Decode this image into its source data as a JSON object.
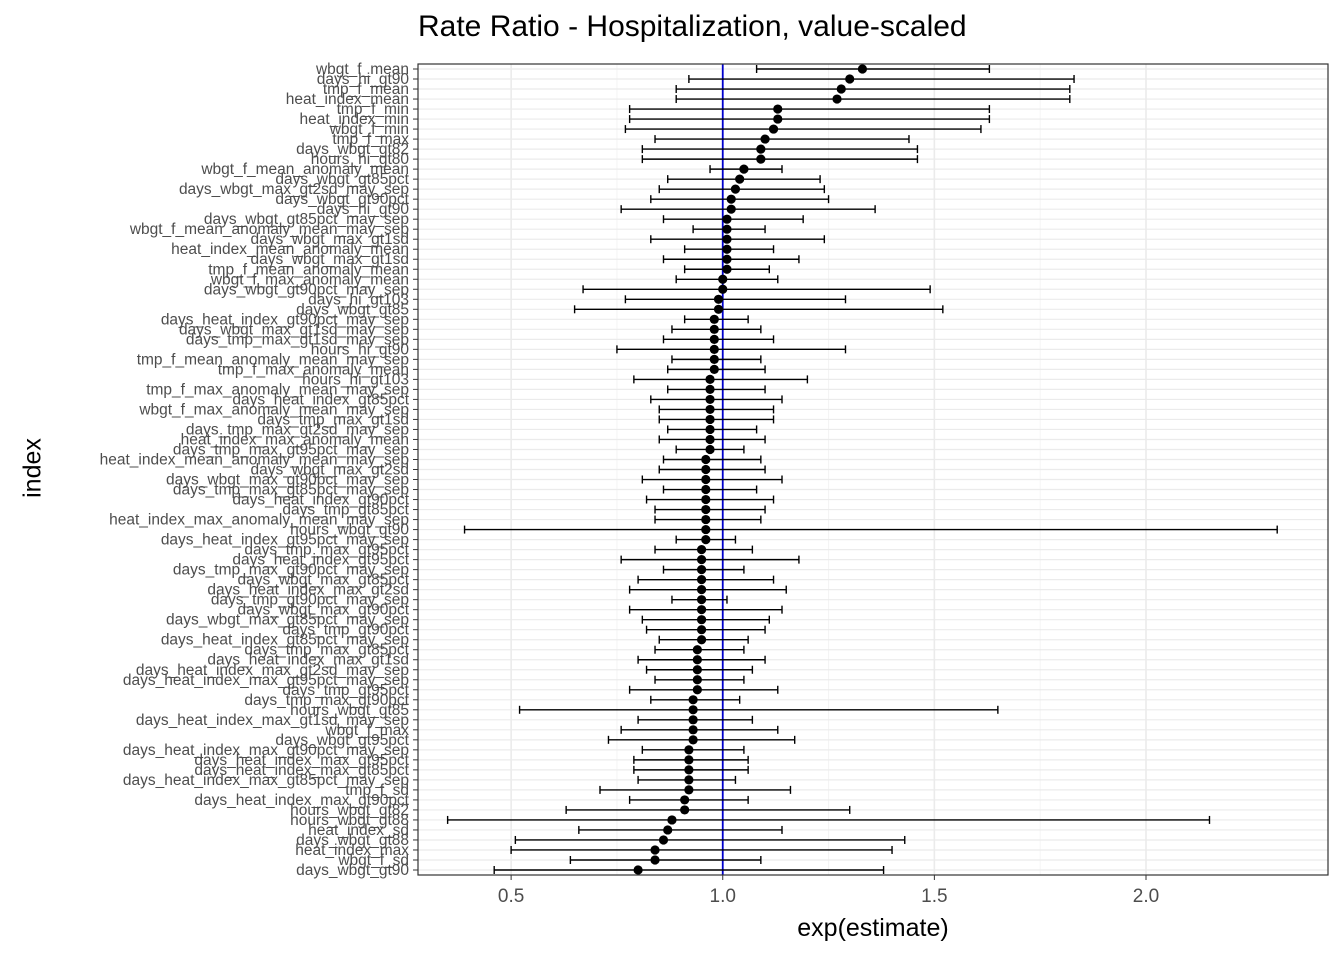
{
  "chart_data": {
    "type": "forest",
    "title": "Rate Ratio - Hospitalization, value-scaled",
    "xlabel": "exp(estimate)",
    "ylabel": "index",
    "xlim": [
      0.28,
      2.43
    ],
    "x_ticks": [
      0.5,
      1.0,
      1.5,
      2.0
    ],
    "x_tick_labels": [
      "0.5",
      "1.0",
      "1.5",
      "2.0"
    ],
    "reference_line": 1.0,
    "theme": "bw",
    "grid": true,
    "colors": {
      "point": "#000000",
      "errorbar": "#000000",
      "reference": "#0000cc",
      "grid_major": "#ebebeb",
      "grid_minor": "#f4f4f4",
      "panel_border": "#333333",
      "tick_text": "#4d4d4d"
    },
    "points": [
      {
        "label": "wbgt_f_mean",
        "estimate": 1.33,
        "low": 1.08,
        "high": 1.63
      },
      {
        "label": "days_hi_gt90",
        "estimate": 1.3,
        "low": 0.92,
        "high": 1.83
      },
      {
        "label": "tmp_f_mean",
        "estimate": 1.28,
        "low": 0.89,
        "high": 1.82
      },
      {
        "label": "heat_index_mean",
        "estimate": 1.27,
        "low": 0.89,
        "high": 1.82
      },
      {
        "label": "tmp_f_min",
        "estimate": 1.13,
        "low": 0.78,
        "high": 1.63
      },
      {
        "label": "heat_index_min",
        "estimate": 1.13,
        "low": 0.78,
        "high": 1.63
      },
      {
        "label": "wbgt_f_min",
        "estimate": 1.12,
        "low": 0.77,
        "high": 1.61
      },
      {
        "label": "tmp_f_max",
        "estimate": 1.1,
        "low": 0.84,
        "high": 1.44
      },
      {
        "label": "days_wbgt_gt82",
        "estimate": 1.09,
        "low": 0.81,
        "high": 1.46
      },
      {
        "label": "hours_hi_gt80",
        "estimate": 1.09,
        "low": 0.81,
        "high": 1.46
      },
      {
        "label": "wbgt_f_mean_anomaly_mean",
        "estimate": 1.05,
        "low": 0.97,
        "high": 1.14
      },
      {
        "label": "days_wbgt_gt85pct",
        "estimate": 1.04,
        "low": 0.87,
        "high": 1.23
      },
      {
        "label": "days_wbgt_max_gt2sd_may_sep",
        "estimate": 1.03,
        "low": 0.85,
        "high": 1.24
      },
      {
        "label": "days_wbgt_gt90pct",
        "estimate": 1.02,
        "low": 0.83,
        "high": 1.25
      },
      {
        "label": "days_hi_gt90",
        "estimate": 1.02,
        "low": 0.76,
        "high": 1.36
      },
      {
        "label": "days_wbgt_gt85pct_may_sep",
        "estimate": 1.01,
        "low": 0.86,
        "high": 1.19
      },
      {
        "label": "wbgt_f_mean_anomaly_mean_may_sep",
        "estimate": 1.01,
        "low": 0.93,
        "high": 1.1
      },
      {
        "label": "days_wbgt_max_gt1sd",
        "estimate": 1.01,
        "low": 0.83,
        "high": 1.24
      },
      {
        "label": "heat_index_mean_anomaly_mean",
        "estimate": 1.01,
        "low": 0.91,
        "high": 1.12
      },
      {
        "label": "days_wbgt_max_gt1sd",
        "estimate": 1.01,
        "low": 0.86,
        "high": 1.18
      },
      {
        "label": "tmp_f_mean_anomaly_mean",
        "estimate": 1.01,
        "low": 0.91,
        "high": 1.11
      },
      {
        "label": "wbgt_f_max_anomaly_mean",
        "estimate": 1.0,
        "low": 0.89,
        "high": 1.13
      },
      {
        "label": "days_wbgt_gt90pct_may_sep",
        "estimate": 1.0,
        "low": 0.67,
        "high": 1.49
      },
      {
        "label": "days_hi_gt103",
        "estimate": 0.99,
        "low": 0.77,
        "high": 1.29
      },
      {
        "label": "days_wbgt_gt85",
        "estimate": 0.99,
        "low": 0.65,
        "high": 1.52
      },
      {
        "label": "days_heat_index_gt90pct_may_sep",
        "estimate": 0.98,
        "low": 0.91,
        "high": 1.06
      },
      {
        "label": "days_wbgt_max_gt1sd_may_sep",
        "estimate": 0.98,
        "low": 0.88,
        "high": 1.09
      },
      {
        "label": "days_tmp_max_gt1sd_may_sep",
        "estimate": 0.98,
        "low": 0.86,
        "high": 1.12
      },
      {
        "label": "hours_hi_gt90",
        "estimate": 0.98,
        "low": 0.75,
        "high": 1.29
      },
      {
        "label": "tmp_f_mean_anomaly_mean_may_sep",
        "estimate": 0.98,
        "low": 0.88,
        "high": 1.09
      },
      {
        "label": "tmp_f_max_anomaly_mean",
        "estimate": 0.98,
        "low": 0.87,
        "high": 1.1
      },
      {
        "label": "hours_hi_gt103",
        "estimate": 0.97,
        "low": 0.79,
        "high": 1.2
      },
      {
        "label": "tmp_f_max_anomaly_mean_may_sep",
        "estimate": 0.97,
        "low": 0.87,
        "high": 1.1
      },
      {
        "label": "days_heat_index_gt85pct",
        "estimate": 0.97,
        "low": 0.83,
        "high": 1.14
      },
      {
        "label": "wbgt_f_max_anomaly_mean_may_sep",
        "estimate": 0.97,
        "low": 0.85,
        "high": 1.12
      },
      {
        "label": "days_tmp_max_gt1sd",
        "estimate": 0.97,
        "low": 0.85,
        "high": 1.12
      },
      {
        "label": "days_tmp_max_gt2sd_may_sep",
        "estimate": 0.97,
        "low": 0.87,
        "high": 1.08
      },
      {
        "label": "heat_index_max_anomaly_mean",
        "estimate": 0.97,
        "low": 0.85,
        "high": 1.1
      },
      {
        "label": "days_tmp_max_gt95pct_may_sep",
        "estimate": 0.97,
        "low": 0.89,
        "high": 1.05
      },
      {
        "label": "heat_index_mean_anomaly_mean_may_sep",
        "estimate": 0.96,
        "low": 0.86,
        "high": 1.09
      },
      {
        "label": "days_wbgt_max_gt2sd",
        "estimate": 0.96,
        "low": 0.85,
        "high": 1.1
      },
      {
        "label": "days_wbgt_max_gt90pct_may_sep",
        "estimate": 0.96,
        "low": 0.81,
        "high": 1.14
      },
      {
        "label": "days_tmp_max_gt85pct_may_sep",
        "estimate": 0.96,
        "low": 0.86,
        "high": 1.08
      },
      {
        "label": "days_heat_index_gt90pct",
        "estimate": 0.96,
        "low": 0.82,
        "high": 1.12
      },
      {
        "label": "days_tmp_gt85pct",
        "estimate": 0.96,
        "low": 0.84,
        "high": 1.1
      },
      {
        "label": "heat_index_max_anomaly_mean_may_sep",
        "estimate": 0.96,
        "low": 0.84,
        "high": 1.09
      },
      {
        "label": "hours_wbgt_gt90",
        "estimate": 0.96,
        "low": 0.39,
        "high": 2.31
      },
      {
        "label": "days_heat_index_gt95pct_may_sep",
        "estimate": 0.96,
        "low": 0.89,
        "high": 1.03
      },
      {
        "label": "days_tmp_max_gt95pct",
        "estimate": 0.95,
        "low": 0.84,
        "high": 1.07
      },
      {
        "label": "days_heat_index_gt95pct",
        "estimate": 0.95,
        "low": 0.76,
        "high": 1.18
      },
      {
        "label": "days_tmp_max_gt90pct_may_sep",
        "estimate": 0.95,
        "low": 0.86,
        "high": 1.05
      },
      {
        "label": "days_wbgt_max_gt85pct",
        "estimate": 0.95,
        "low": 0.8,
        "high": 1.12
      },
      {
        "label": "days_heat_index_max_gt2sd",
        "estimate": 0.95,
        "low": 0.78,
        "high": 1.15
      },
      {
        "label": "days_tmp_gt90pct_may_sep",
        "estimate": 0.95,
        "low": 0.88,
        "high": 1.01
      },
      {
        "label": "days_wbgt_max_gt90pct",
        "estimate": 0.95,
        "low": 0.78,
        "high": 1.14
      },
      {
        "label": "days_wbgt_max_gt85pct_may_sep",
        "estimate": 0.95,
        "low": 0.81,
        "high": 1.11
      },
      {
        "label": "days_tmp_gt90pct",
        "estimate": 0.95,
        "low": 0.82,
        "high": 1.1
      },
      {
        "label": "days_heat_index_gt85pct_may_sep",
        "estimate": 0.95,
        "low": 0.85,
        "high": 1.06
      },
      {
        "label": "days_tmp_max_gt85pct",
        "estimate": 0.94,
        "low": 0.84,
        "high": 1.05
      },
      {
        "label": "days_heat_index_max_gt1sd",
        "estimate": 0.94,
        "low": 0.8,
        "high": 1.1
      },
      {
        "label": "days_heat_index_max_gt2sd_may_sep",
        "estimate": 0.94,
        "low": 0.82,
        "high": 1.07
      },
      {
        "label": "days_heat_index_max_gt95pct_may_sep",
        "estimate": 0.94,
        "low": 0.84,
        "high": 1.05
      },
      {
        "label": "days_tmp_gt95pct",
        "estimate": 0.94,
        "low": 0.78,
        "high": 1.13
      },
      {
        "label": "days_tmp_max_gt90pct",
        "estimate": 0.93,
        "low": 0.83,
        "high": 1.04
      },
      {
        "label": "hours_wbgt_gt85",
        "estimate": 0.93,
        "low": 0.52,
        "high": 1.65
      },
      {
        "label": "days_heat_index_max_gt1sd_may_sep",
        "estimate": 0.93,
        "low": 0.8,
        "high": 1.07
      },
      {
        "label": "wbgt_f_max",
        "estimate": 0.93,
        "low": 0.76,
        "high": 1.13
      },
      {
        "label": "days_wbgt_gt95pct",
        "estimate": 0.93,
        "low": 0.73,
        "high": 1.17
      },
      {
        "label": "days_heat_index_max_gt90pct_may_sep",
        "estimate": 0.92,
        "low": 0.81,
        "high": 1.05
      },
      {
        "label": "days_heat_index_max_gt95pct",
        "estimate": 0.92,
        "low": 0.79,
        "high": 1.06
      },
      {
        "label": "days_heat_index_max_gt85pct",
        "estimate": 0.92,
        "low": 0.79,
        "high": 1.06
      },
      {
        "label": "days_heat_index_max_gt85pct_may_sep",
        "estimate": 0.92,
        "low": 0.8,
        "high": 1.03
      },
      {
        "label": "tmp_f_sd",
        "estimate": 0.92,
        "low": 0.71,
        "high": 1.16
      },
      {
        "label": "days_heat_index_max_gt90pct",
        "estimate": 0.91,
        "low": 0.78,
        "high": 1.06
      },
      {
        "label": "hours_wbgt_gt82",
        "estimate": 0.91,
        "low": 0.63,
        "high": 1.3
      },
      {
        "label": "hours_wbgt_gt88",
        "estimate": 0.88,
        "low": 0.35,
        "high": 2.15
      },
      {
        "label": "heat_index_sd",
        "estimate": 0.87,
        "low": 0.66,
        "high": 1.14
      },
      {
        "label": "days_wbgt_gt88",
        "estimate": 0.86,
        "low": 0.51,
        "high": 1.43
      },
      {
        "label": "heat_index_max",
        "estimate": 0.84,
        "low": 0.5,
        "high": 1.4
      },
      {
        "label": "wbgt_f_sd",
        "estimate": 0.84,
        "low": 0.64,
        "high": 1.09
      },
      {
        "label": "days_wbgt_gt90",
        "estimate": 0.8,
        "low": 0.46,
        "high": 1.38
      }
    ]
  }
}
